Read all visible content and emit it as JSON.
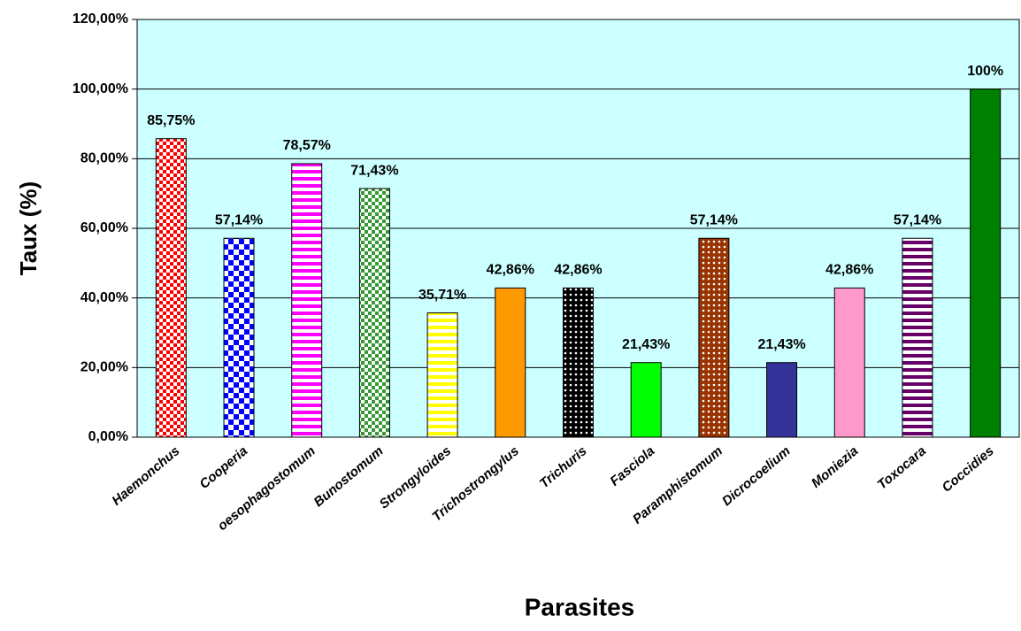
{
  "chart_data": {
    "type": "bar",
    "x_label": "Parasites",
    "y_label": "Taux (%)",
    "categories": [
      "Haemonchus",
      "Cooperia",
      "oesophagostomum",
      "Bunostomum",
      "Strongyloides",
      "Trichostrongylus",
      "Trichuris",
      "Fasciola",
      "Paramphistomum",
      "Dicrocoelium",
      "Moniezia",
      "Toxocara",
      "Coccidies"
    ],
    "values": [
      85.75,
      57.14,
      78.57,
      71.43,
      35.71,
      42.86,
      42.86,
      21.43,
      57.14,
      21.43,
      42.86,
      57.14,
      100
    ],
    "value_labels": [
      "85,75%",
      "57,14%",
      "78,57%",
      "71,43%",
      "35,71%",
      "42,86%",
      "42,86%",
      "21,43%",
      "57,14%",
      "21,43%",
      "42,86%",
      "57,14%",
      "100%"
    ],
    "colors": [
      "#ff0000",
      "#0000ff",
      "#ff00ff",
      "#339933",
      "#ffff00",
      "#ff9900",
      "#000000",
      "#00ff00",
      "#993300",
      "#333399",
      "#ff99cc",
      "#660066",
      "#008000"
    ],
    "patterns": [
      "checker",
      "checker",
      "stripes",
      "checker",
      "stripes",
      "solid",
      "dots",
      "solid",
      "dots",
      "solid",
      "solid",
      "stripes",
      "solid"
    ],
    "plot_background": "#ccffff",
    "ylim": [
      0,
      120
    ],
    "yticks": [
      {
        "value": 0,
        "label": "0,00%"
      },
      {
        "value": 20,
        "label": "20,00%"
      },
      {
        "value": 40,
        "label": "40,00%"
      },
      {
        "value": 60,
        "label": "60,00%"
      },
      {
        "value": 80,
        "label": "80,00%"
      },
      {
        "value": 100,
        "label": "100,00%"
      },
      {
        "value": 120,
        "label": "120,00%"
      }
    ],
    "grid": true
  }
}
